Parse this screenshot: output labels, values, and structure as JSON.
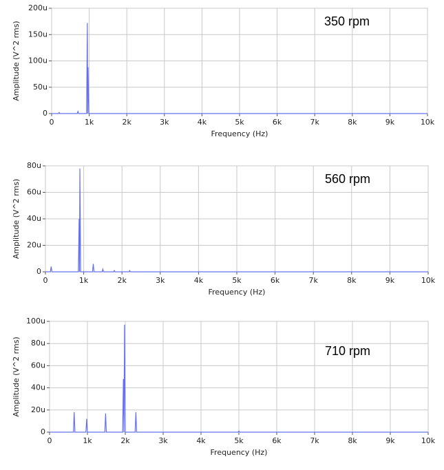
{
  "chart_data": [
    {
      "type": "line",
      "annotation": "350 rpm",
      "x_label": "Frequency (Hz)",
      "y_label": "Amplitude (V^2 rms)",
      "x": [
        0,
        180,
        200,
        220,
        680,
        700,
        720,
        930,
        950,
        960,
        970,
        990,
        10000
      ],
      "values": [
        0,
        0,
        2,
        0,
        0,
        4,
        0,
        0,
        172,
        0,
        88,
        0,
        0
      ],
      "color": "#6670ee",
      "grid": true,
      "xlim": [
        0,
        10000
      ],
      "xticks": [
        0,
        {
          "value": 1000,
          "label": "1k"
        },
        {
          "value": 2000,
          "label": "2k"
        },
        {
          "value": 3000,
          "label": "3k"
        },
        {
          "value": 4000,
          "label": "4k"
        },
        {
          "value": 5000,
          "label": "5k"
        },
        {
          "value": 6000,
          "label": "6k"
        },
        {
          "value": 7000,
          "label": "7k"
        },
        {
          "value": 8000,
          "label": "8k"
        },
        {
          "value": 9000,
          "label": "9k"
        },
        {
          "value": 10000,
          "label": "10k"
        }
      ],
      "ylim": [
        0,
        200
      ],
      "yticks": [
        0,
        {
          "value": 50,
          "label": "50u"
        },
        {
          "value": 100,
          "label": "100u"
        },
        {
          "value": 150,
          "label": "150u"
        },
        {
          "value": 200,
          "label": "200u"
        }
      ]
    },
    {
      "type": "line",
      "annotation": "560 rpm",
      "x_label": "Frequency (Hz)",
      "y_label": "Amplitude (V^2 rms)",
      "x": [
        0,
        130,
        150,
        170,
        860,
        880,
        890,
        900,
        920,
        1230,
        1250,
        1270,
        1480,
        1500,
        1520,
        1780,
        1800,
        1820,
        2180,
        2200,
        2220,
        10000
      ],
      "values": [
        0,
        0,
        4,
        0,
        0,
        40,
        0,
        78,
        0,
        0,
        6,
        0,
        0,
        2,
        0,
        0,
        1,
        0,
        0,
        1,
        0,
        0
      ],
      "color": "#6670ee",
      "grid": true,
      "xlim": [
        0,
        10000
      ],
      "xticks": [
        0,
        {
          "value": 1000,
          "label": "1k"
        },
        {
          "value": 2000,
          "label": "2k"
        },
        {
          "value": 3000,
          "label": "3k"
        },
        {
          "value": 4000,
          "label": "4k"
        },
        {
          "value": 5000,
          "label": "5k"
        },
        {
          "value": 6000,
          "label": "6k"
        },
        {
          "value": 7000,
          "label": "7k"
        },
        {
          "value": 8000,
          "label": "8k"
        },
        {
          "value": 9000,
          "label": "9k"
        },
        {
          "value": 10000,
          "label": "10k"
        }
      ],
      "ylim": [
        0,
        80
      ],
      "yticks": [
        0,
        {
          "value": 20,
          "label": "20u"
        },
        {
          "value": 40,
          "label": "40u"
        },
        {
          "value": 60,
          "label": "60u"
        },
        {
          "value": 80,
          "label": "80u"
        }
      ]
    },
    {
      "type": "line",
      "annotation": "710 rpm",
      "x_label": "Frequency (Hz)",
      "y_label": "Amplitude (V^2 rms)",
      "x": [
        0,
        630,
        650,
        670,
        960,
        980,
        1000,
        1460,
        1480,
        1500,
        1930,
        1950,
        1965,
        1980,
        2000,
        2260,
        2280,
        2300,
        4980,
        5000,
        5020,
        10000
      ],
      "values": [
        0,
        0,
        18,
        0,
        0,
        12,
        0,
        0,
        17,
        0,
        0,
        48,
        0,
        97,
        0,
        0,
        18,
        0,
        0,
        1,
        0,
        0
      ],
      "color": "#6670ee",
      "grid": true,
      "xlim": [
        0,
        10000
      ],
      "xticks": [
        0,
        {
          "value": 1000,
          "label": "1k"
        },
        {
          "value": 2000,
          "label": "2k"
        },
        {
          "value": 3000,
          "label": "3k"
        },
        {
          "value": 4000,
          "label": "4k"
        },
        {
          "value": 5000,
          "label": "5k"
        },
        {
          "value": 6000,
          "label": "6k"
        },
        {
          "value": 7000,
          "label": "7k"
        },
        {
          "value": 8000,
          "label": "8k"
        },
        {
          "value": 9000,
          "label": "9k"
        },
        {
          "value": 10000,
          "label": "10k"
        }
      ],
      "ylim": [
        0,
        100
      ],
      "yticks": [
        0,
        {
          "value": 20,
          "label": "20u"
        },
        {
          "value": 40,
          "label": "40u"
        },
        {
          "value": 60,
          "label": "60u"
        },
        {
          "value": 80,
          "label": "80u"
        },
        {
          "value": 100,
          "label": "100u"
        }
      ]
    }
  ]
}
